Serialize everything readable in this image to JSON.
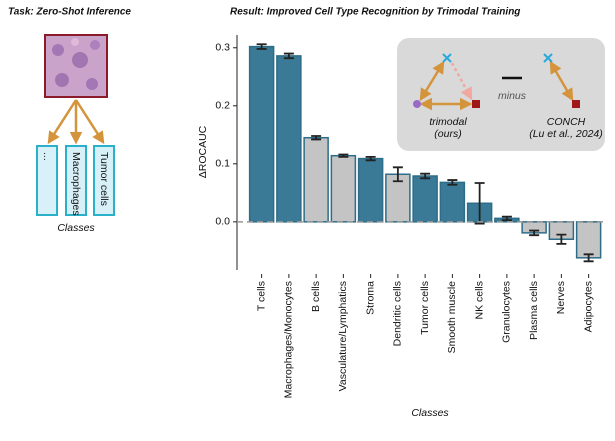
{
  "task_panel": {
    "title": "Task: Zero-Shot Inference",
    "boxes": [
      "...",
      "Macrophages",
      "Tumor cells"
    ],
    "label": "Classes"
  },
  "inset": {
    "trimodal": [
      "trimodal",
      "(ours)"
    ],
    "operator": "minus",
    "conch": [
      "CONCH",
      "(Lu et al., 2024)"
    ]
  },
  "chart_data": {
    "type": "bar",
    "title": "Result: Improved Cell Type Recognition by Trimodal Training",
    "xlabel": "Classes",
    "ylabel": "ΔROCAUC",
    "categories": [
      "T cells",
      "Macrophages/Monocytes",
      "B cells",
      "Vasculature/Lymphatics",
      "Stroma",
      "Dendritic cells",
      "Tumor cells",
      "Smooth muscle",
      "NK cells",
      "Granulocytes",
      "Plasma cells",
      "Nerves",
      "Adipocytes"
    ],
    "values": [
      0.302,
      0.286,
      0.145,
      0.114,
      0.109,
      0.082,
      0.079,
      0.068,
      0.032,
      0.006,
      -0.019,
      -0.03,
      -0.062
    ],
    "errors": [
      0.004,
      0.004,
      0.003,
      0.002,
      0.003,
      0.012,
      0.004,
      0.004,
      0.035,
      0.003,
      0.004,
      0.008,
      0.006
    ],
    "colors": [
      "#3a7a96",
      "#3a7a96",
      "#c4c4c4",
      "#c4c4c4",
      "#3a7a96",
      "#c4c4c4",
      "#3a7a96",
      "#3a7a96",
      "#3a7a96",
      "#3a7a96",
      "#c4c4c4",
      "#c4c4c4",
      "#c4c4c4"
    ],
    "edgecolor": "#2e6d88",
    "ylim": [
      -0.083,
      0.322
    ],
    "yticks": [
      {
        "value": 0,
        "label": "0.0"
      },
      0.1,
      0.2,
      0.3
    ],
    "hline": 0
  }
}
